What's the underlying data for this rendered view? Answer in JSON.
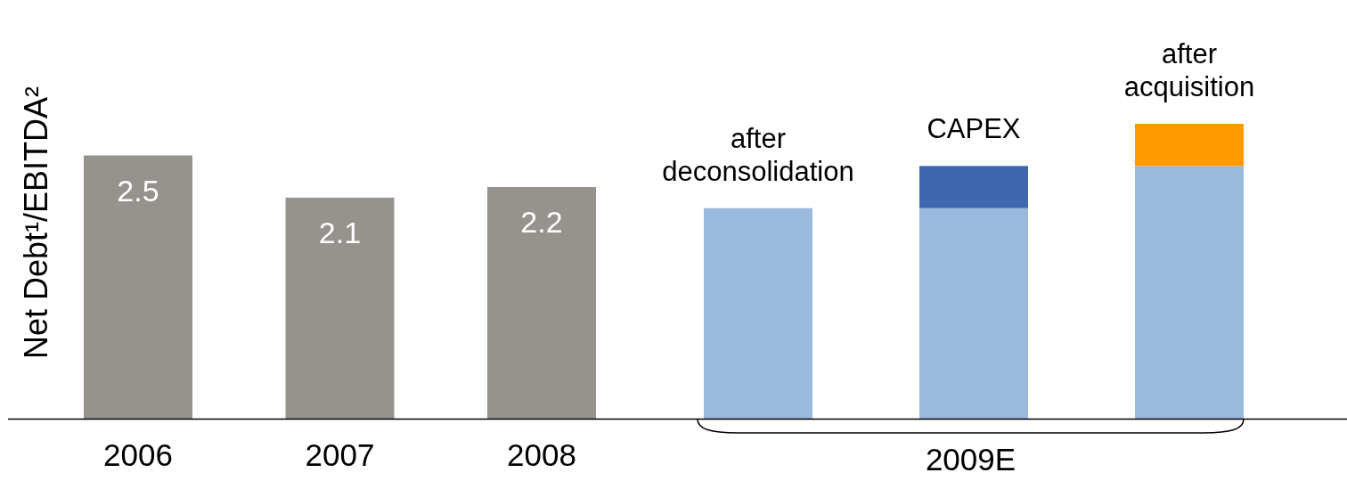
{
  "chart_data": {
    "type": "bar",
    "stacked": true,
    "ylabel": "Net Debt¹/EBITDA²",
    "categories": [
      "2006",
      "2007",
      "2008",
      null,
      null,
      null
    ],
    "series": [
      {
        "colors": [
          "#96938e",
          "#96938e",
          "#96938e",
          "#99b9dd",
          "#99b9dd",
          "#99b9dd"
        ],
        "values": [
          2.5,
          2.1,
          2.2,
          2.0,
          2.0,
          2.4
        ],
        "value_labels": [
          "2.5",
          "2.1",
          "2.2",
          null,
          null,
          null
        ]
      },
      {
        "color": "#3d67ae",
        "values": [
          null,
          null,
          null,
          null,
          0.4,
          null
        ]
      },
      {
        "color": "#ff9900",
        "values": [
          null,
          null,
          null,
          null,
          null,
          0.4
        ]
      }
    ],
    "annotations": [
      "after deconsolidation",
      "CAPEX",
      "after acquisition",
      "2009E"
    ]
  }
}
